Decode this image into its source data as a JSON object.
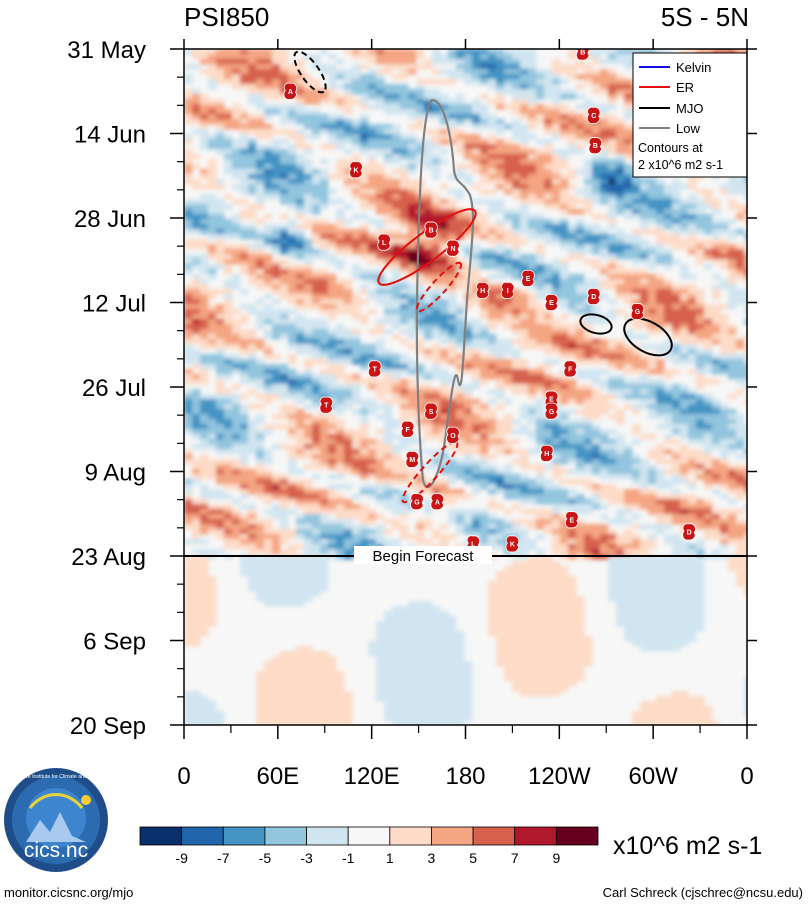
{
  "chart_data": {
    "type": "heatmap",
    "title_left": "PSI850",
    "title_right": "5S - 5N",
    "y_tick_labels": [
      "31 May",
      "14 Jun",
      "28 Jun",
      "12 Jul",
      "26 Jul",
      "9 Aug",
      "23 Aug",
      "6 Sep",
      "20 Sep"
    ],
    "x_tick_labels": [
      "0",
      "60E",
      "120E",
      "180",
      "120W",
      "60W",
      "0"
    ],
    "x_range_deg_east": [
      0,
      360
    ],
    "y_range_days_from_31May": [
      0,
      112
    ],
    "forecast_start_day": 84,
    "forecast_label": "Begin Forecast",
    "legend": {
      "items": [
        {
          "name": "Kelvin",
          "color": "#1010e0"
        },
        {
          "name": "ER",
          "color": "#e01010"
        },
        {
          "name": "MJO",
          "color": "#000000"
        },
        {
          "name": "Low",
          "color": "#808080"
        }
      ],
      "note_line1": "Contours at",
      "note_line2": "2 x10^6 m2 s-1"
    },
    "colorbar": {
      "tick_labels": [
        "-9",
        "-7",
        "-5",
        "-3",
        "-1",
        "1",
        "3",
        "5",
        "7",
        "9"
      ],
      "colors": [
        "#08306b",
        "#2166ac",
        "#4393c3",
        "#92c5de",
        "#d1e5f0",
        "#f7f7f7",
        "#fddbc7",
        "#f4a582",
        "#d6604d",
        "#b2182b",
        "#67001f"
      ],
      "units": "x10^6 m2 s-1"
    },
    "storms": [
      {
        "letter": "B",
        "lon": 255,
        "day": 0.5
      },
      {
        "letter": "A",
        "lon": 68,
        "day": 7
      },
      {
        "letter": "C",
        "lon": 262,
        "day": 11
      },
      {
        "letter": "B",
        "lon": 263,
        "day": 16
      },
      {
        "letter": "K",
        "lon": 110,
        "day": 20
      },
      {
        "letter": "B",
        "lon": 158,
        "day": 30
      },
      {
        "letter": "L",
        "lon": 128,
        "day": 32
      },
      {
        "letter": "N",
        "lon": 172,
        "day": 33
      },
      {
        "letter": "E",
        "lon": 220,
        "day": 38
      },
      {
        "letter": "H",
        "lon": 191,
        "day": 40
      },
      {
        "letter": "I",
        "lon": 207,
        "day": 40
      },
      {
        "letter": "D",
        "lon": 262,
        "day": 41
      },
      {
        "letter": "E",
        "lon": 235,
        "day": 42
      },
      {
        "letter": "G",
        "lon": 290,
        "day": 43.5
      },
      {
        "letter": "F",
        "lon": 247,
        "day": 53
      },
      {
        "letter": "T",
        "lon": 122,
        "day": 53
      },
      {
        "letter": "E",
        "lon": 235,
        "day": 58
      },
      {
        "letter": "T",
        "lon": 91,
        "day": 59
      },
      {
        "letter": "S",
        "lon": 158,
        "day": 60
      },
      {
        "letter": "G",
        "lon": 235,
        "day": 60
      },
      {
        "letter": "F",
        "lon": 143,
        "day": 63
      },
      {
        "letter": "O",
        "lon": 172,
        "day": 64
      },
      {
        "letter": "H",
        "lon": 232,
        "day": 67
      },
      {
        "letter": "M",
        "lon": 146,
        "day": 68
      },
      {
        "letter": "G",
        "lon": 149,
        "day": 75
      },
      {
        "letter": "A",
        "lon": 162,
        "day": 75
      },
      {
        "letter": "E",
        "lon": 248,
        "day": 78
      },
      {
        "letter": "D",
        "lon": 323,
        "day": 80
      },
      {
        "letter": "L",
        "lon": 185,
        "day": 82
      },
      {
        "letter": "K",
        "lon": 210,
        "day": 82
      }
    ]
  },
  "footer": {
    "logo_text": "cics.nc",
    "logo_ring_text": "Cooperative Institute for Climate and Satellites",
    "left_url": "monitor.cicsnc.org/mjo",
    "right_credit": "Carl Schreck (cjschrec@ncsu.edu)"
  },
  "colors": {
    "er": "#e01010",
    "mjo": "#000000",
    "low": "#808080",
    "storm": "#c81414"
  }
}
